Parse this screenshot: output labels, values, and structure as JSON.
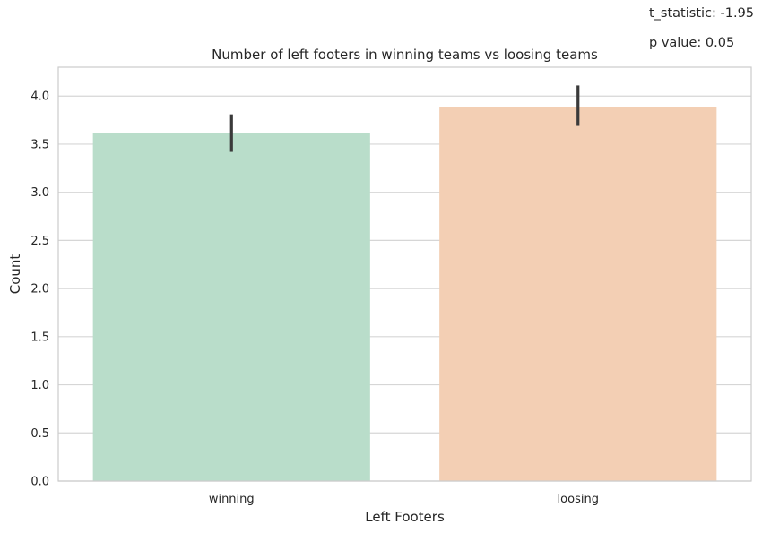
{
  "annotations": {
    "t_statistic": "t_statistic: -1.95",
    "p_value": "p value: 0.05"
  },
  "chart_data": {
    "type": "bar",
    "title": "Number of left footers in winning teams vs loosing teams",
    "xlabel": "Left Footers",
    "ylabel": "Count",
    "categories": [
      "winning",
      "loosing"
    ],
    "values": [
      3.62,
      3.89
    ],
    "error_low": [
      3.42,
      3.69
    ],
    "error_high": [
      3.81,
      4.11
    ],
    "colors": [
      "#b9ddca",
      "#f3cfb4"
    ],
    "errorbar_color": "#3a3a3a",
    "ylim": [
      0,
      4.3
    ],
    "yticks": [
      0.0,
      0.5,
      1.0,
      1.5,
      2.0,
      2.5,
      3.0,
      3.5,
      4.0
    ],
    "ytick_labels": [
      "0.0",
      "0.5",
      "1.0",
      "1.5",
      "2.0",
      "2.5",
      "3.0",
      "3.5",
      "4.0"
    ],
    "grid": true,
    "grid_color": "#d6d6d6",
    "legend": "none"
  }
}
